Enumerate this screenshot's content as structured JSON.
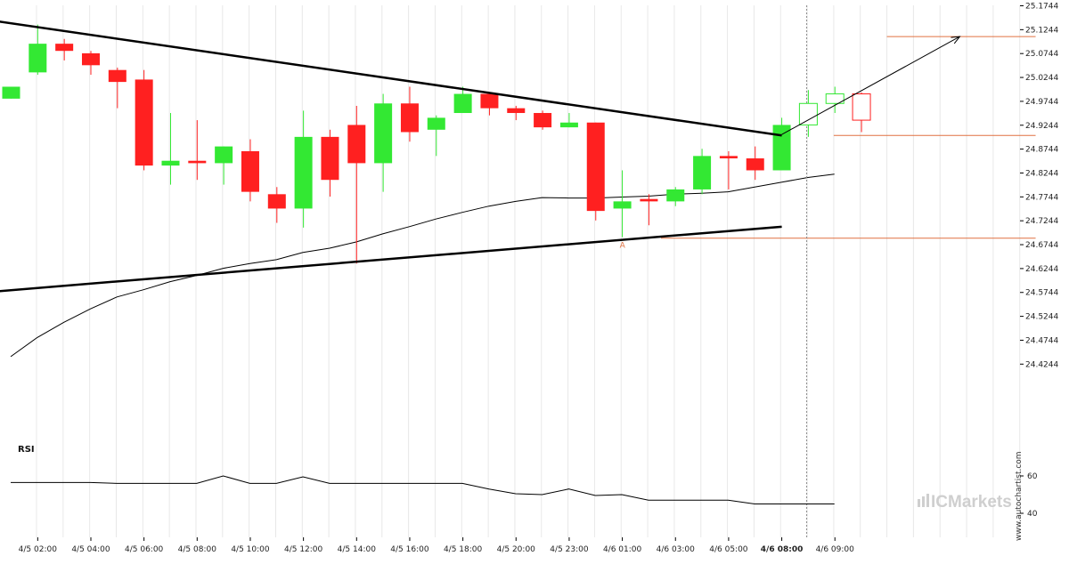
{
  "chart_data": {
    "type": "candlestick",
    "y_axis": {
      "ticks": [
        "25.1744",
        "25.1244",
        "25.0744",
        "25.0244",
        "24.9744",
        "24.9244",
        "24.8744",
        "24.8244",
        "24.7744",
        "24.7244",
        "24.6744",
        "24.6244",
        "24.5744",
        "24.5244",
        "24.4744",
        "24.4244"
      ],
      "range": [
        24.38,
        25.18
      ]
    },
    "x_axis": {
      "labels": [
        {
          "index": 1,
          "text": "4/5 02:00"
        },
        {
          "index": 3,
          "text": "4/5 04:00"
        },
        {
          "index": 5,
          "text": "4/5 06:00"
        },
        {
          "index": 7,
          "text": "4/5 08:00"
        },
        {
          "index": 9,
          "text": "4/5 10:00"
        },
        {
          "index": 11,
          "text": "4/5 12:00"
        },
        {
          "index": 13,
          "text": "4/5 14:00"
        },
        {
          "index": 15,
          "text": "4/5 16:00"
        },
        {
          "index": 17,
          "text": "4/5 18:00"
        },
        {
          "index": 19,
          "text": "4/5 20:00"
        },
        {
          "index": 21,
          "text": "4/5 23:00"
        },
        {
          "index": 23,
          "text": "4/6 01:00"
        },
        {
          "index": 25,
          "text": "4/6 03:00"
        },
        {
          "index": 27,
          "text": "4/6 05:00"
        },
        {
          "index": 29,
          "text": "4/6 08:00",
          "bold": true
        },
        {
          "index": 31,
          "text": "4/6 09:00"
        }
      ]
    },
    "candles": [
      {
        "o": 24.98,
        "h": 25.0,
        "l": 24.98,
        "c": 25.005
      },
      {
        "o": 25.035,
        "h": 25.135,
        "l": 25.03,
        "c": 25.095
      },
      {
        "o": 25.095,
        "h": 25.105,
        "l": 25.06,
        "c": 25.08
      },
      {
        "o": 25.075,
        "h": 25.08,
        "l": 25.03,
        "c": 25.05
      },
      {
        "o": 25.04,
        "h": 25.045,
        "l": 24.96,
        "c": 25.015
      },
      {
        "o": 25.02,
        "h": 25.04,
        "l": 24.83,
        "c": 24.84
      },
      {
        "o": 24.84,
        "h": 24.95,
        "l": 24.8,
        "c": 24.85
      },
      {
        "o": 24.85,
        "h": 24.935,
        "l": 24.81,
        "c": 24.845
      },
      {
        "o": 24.845,
        "h": 24.88,
        "l": 24.8,
        "c": 24.88
      },
      {
        "o": 24.87,
        "h": 24.895,
        "l": 24.765,
        "c": 24.785
      },
      {
        "o": 24.78,
        "h": 24.795,
        "l": 24.72,
        "c": 24.75
      },
      {
        "o": 24.75,
        "h": 24.955,
        "l": 24.71,
        "c": 24.9
      },
      {
        "o": 24.9,
        "h": 24.915,
        "l": 24.775,
        "c": 24.81
      },
      {
        "o": 24.925,
        "h": 24.965,
        "l": 24.635,
        "c": 24.845
      },
      {
        "o": 24.845,
        "h": 24.99,
        "l": 24.785,
        "c": 24.97
      },
      {
        "o": 24.97,
        "h": 25.005,
        "l": 24.89,
        "c": 24.91
      },
      {
        "o": 24.915,
        "h": 24.945,
        "l": 24.86,
        "c": 24.94
      },
      {
        "o": 24.95,
        "h": 25.005,
        "l": 24.95,
        "c": 24.99
      },
      {
        "o": 24.99,
        "h": 24.99,
        "l": 24.945,
        "c": 24.96
      },
      {
        "o": 24.96,
        "h": 24.965,
        "l": 24.935,
        "c": 24.95
      },
      {
        "o": 24.95,
        "h": 24.955,
        "l": 24.915,
        "c": 24.92
      },
      {
        "o": 24.92,
        "h": 24.95,
        "l": 24.92,
        "c": 24.93
      },
      {
        "o": 24.93,
        "h": 24.93,
        "l": 24.725,
        "c": 24.745
      },
      {
        "o": 24.75,
        "h": 24.83,
        "l": 24.69,
        "c": 24.765
      },
      {
        "o": 24.77,
        "h": 24.78,
        "l": 24.715,
        "c": 24.765
      },
      {
        "o": 24.765,
        "h": 24.795,
        "l": 24.755,
        "c": 24.79
      },
      {
        "o": 24.79,
        "h": 24.875,
        "l": 24.78,
        "c": 24.86
      },
      {
        "o": 24.86,
        "h": 24.87,
        "l": 24.79,
        "c": 24.855
      },
      {
        "o": 24.855,
        "h": 24.88,
        "l": 24.81,
        "c": 24.83
      },
      {
        "o": 24.83,
        "h": 24.94,
        "l": 24.83,
        "c": 24.925
      }
    ],
    "forecast_candles": [
      {
        "o": 24.925,
        "h": 24.998,
        "l": 24.9,
        "c": 24.97
      },
      {
        "o": 24.97,
        "h": 25.005,
        "l": 24.95,
        "c": 24.99
      },
      {
        "o": 24.99,
        "h": 24.993,
        "l": 24.91,
        "c": 24.935
      }
    ],
    "moving_average": [
      24.44,
      24.48,
      24.512,
      24.54,
      24.565,
      24.58,
      24.597,
      24.61,
      24.625,
      24.635,
      24.643,
      24.658,
      24.667,
      24.68,
      24.697,
      24.712,
      24.728,
      24.742,
      24.755,
      24.765,
      24.773,
      24.772,
      24.772,
      24.774,
      24.776,
      24.78,
      24.782,
      24.785,
      24.795,
      24.805,
      24.815,
      24.822
    ],
    "pattern": {
      "upper_trendline": [
        {
          "x": -0.9,
          "y": 25.145
        },
        {
          "x": 29,
          "y": 24.903
        }
      ],
      "lower_trendline": [
        {
          "x": -0.9,
          "y": 24.575
        },
        {
          "x": 29,
          "y": 24.712
        }
      ],
      "breakout_arrow": [
        {
          "x": 29,
          "y": 24.905
        },
        {
          "x": 35.7,
          "y": 25.11
        }
      ],
      "target_level": {
        "value": 25.11,
        "x_from": 32,
        "x_to": 38
      },
      "breakout_level": {
        "value": 24.903,
        "x_from": 30,
        "x_to": 38
      },
      "support_level": {
        "value": 24.688,
        "x_from": 23.5,
        "x_to": 38
      },
      "point_label": {
        "text": "A",
        "x": 23,
        "y": 24.675
      },
      "breakout_index": 29
    },
    "rsi": {
      "label": "RSI",
      "ticks": [
        "60",
        "40"
      ],
      "range": [
        30,
        75
      ],
      "values": [
        56.5,
        56.5,
        56.5,
        56.5,
        56,
        56,
        56,
        56,
        60,
        56,
        56,
        59.5,
        56,
        56,
        56,
        56,
        56,
        56,
        53,
        50.5,
        50,
        53,
        49.5,
        50,
        47,
        47,
        47,
        47,
        45,
        45,
        45,
        45
      ]
    }
  },
  "branding": {
    "vertical_text": "www.autochartist.com",
    "logo_text": "ICMarkets"
  },
  "colors": {
    "up": "#33e833",
    "down": "#ff2020",
    "level": "#e07040",
    "trendline": "#000000",
    "grid": "#e8e8e8"
  }
}
